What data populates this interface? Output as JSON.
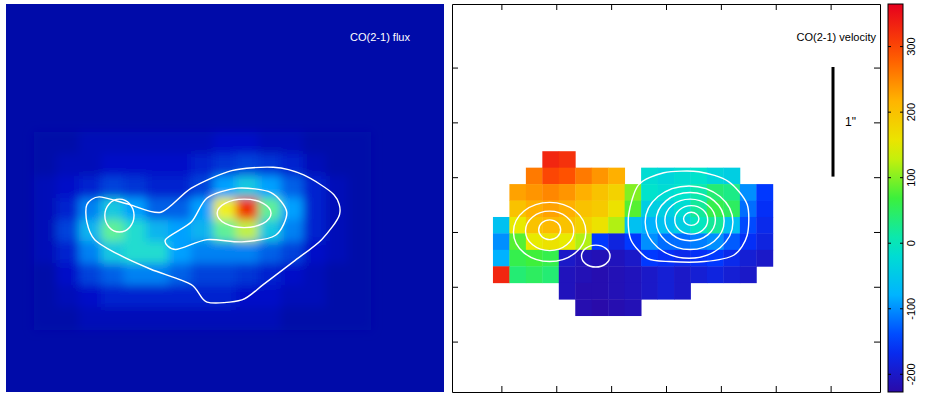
{
  "chart_data": [
    {
      "type": "heatmap",
      "title": "CO(2-1) flux",
      "xlim": [
        -1.95,
        1.95
      ],
      "ylim": [
        -1.77,
        1.77
      ],
      "color_range": [
        0,
        1
      ],
      "x": [
        -1.6,
        -1.4,
        -1.2,
        -1,
        -0.8,
        -0.6,
        -0.4,
        -0.2,
        0,
        0.2,
        0.4,
        0.6,
        0.8,
        1,
        1.2
      ],
      "y": [
        0.5,
        0.3,
        0.1,
        -0.1,
        -0.3,
        -0.5,
        -0.7,
        -0.9,
        -1.1
      ],
      "values": [
        [
          0.08,
          0.08,
          0.1,
          0.1,
          0.1,
          0.1,
          0.1,
          0.1,
          0.12,
          0.12,
          0.1,
          0.1,
          0.08,
          0.08,
          0.08
        ],
        [
          0.08,
          0.1,
          0.1,
          0.12,
          0.12,
          0.12,
          0.12,
          0.15,
          0.18,
          0.2,
          0.18,
          0.15,
          0.1,
          0.08,
          0.08
        ],
        [
          0.1,
          0.12,
          0.15,
          0.2,
          0.18,
          0.15,
          0.15,
          0.2,
          0.35,
          0.45,
          0.35,
          0.25,
          0.15,
          0.1,
          0.08
        ],
        [
          0.1,
          0.15,
          0.3,
          0.45,
          0.35,
          0.25,
          0.25,
          0.35,
          0.75,
          0.95,
          0.6,
          0.35,
          0.15,
          0.1,
          0.08
        ],
        [
          0.1,
          0.2,
          0.4,
          0.6,
          0.5,
          0.4,
          0.35,
          0.4,
          0.6,
          0.7,
          0.45,
          0.3,
          0.15,
          0.1,
          0.08
        ],
        [
          0.1,
          0.15,
          0.3,
          0.45,
          0.5,
          0.5,
          0.35,
          0.3,
          0.3,
          0.3,
          0.25,
          0.2,
          0.12,
          0.1,
          0.08
        ],
        [
          0.08,
          0.12,
          0.2,
          0.25,
          0.3,
          0.3,
          0.25,
          0.2,
          0.2,
          0.18,
          0.15,
          0.12,
          0.1,
          0.08,
          0.08
        ],
        [
          0.08,
          0.1,
          0.12,
          0.15,
          0.15,
          0.15,
          0.15,
          0.15,
          0.15,
          0.12,
          0.12,
          0.1,
          0.1,
          0.08,
          0.08
        ],
        [
          0.08,
          0.08,
          0.1,
          0.1,
          0.1,
          0.1,
          0.1,
          0.1,
          0.1,
          0.1,
          0.1,
          0.08,
          0.08,
          0.08,
          0.08
        ]
      ],
      "contours": [
        {
          "points": [
            [
              -1.23,
              -0.06
            ],
            [
              -1.12,
              0.01
            ],
            [
              -0.85,
              -0.06
            ],
            [
              -0.57,
              -0.13
            ],
            [
              -0.3,
              0.09
            ],
            [
              0.06,
              0.25
            ],
            [
              0.43,
              0.28
            ],
            [
              0.7,
              0.21
            ],
            [
              0.97,
              0.03
            ],
            [
              1.02,
              -0.15
            ],
            [
              0.86,
              -0.38
            ],
            [
              0.61,
              -0.58
            ],
            [
              0.34,
              -0.79
            ],
            [
              0.15,
              -0.93
            ],
            [
              -0.16,
              -0.95
            ],
            [
              -0.3,
              -0.79
            ],
            [
              -0.66,
              -0.65
            ],
            [
              -0.94,
              -0.52
            ],
            [
              -1.16,
              -0.38
            ],
            [
              -1.23,
              -0.22
            ]
          ]
        },
        {
          "center": [
            -0.94,
            -0.16
          ],
          "radii": [
            0.13,
            0.15
          ]
        },
        {
          "points": [
            [
              -0.53,
              -0.38
            ],
            [
              -0.3,
              -0.22
            ],
            [
              -0.16,
              0
            ],
            [
              0.11,
              0.09
            ],
            [
              0.41,
              0.05
            ],
            [
              0.55,
              -0.13
            ],
            [
              0.45,
              -0.34
            ],
            [
              0.15,
              -0.4
            ],
            [
              -0.16,
              -0.38
            ],
            [
              -0.44,
              -0.47
            ]
          ]
        },
        {
          "center": [
            0.17,
            -0.14
          ],
          "radii": [
            0.24,
            0.13
          ]
        }
      ]
    },
    {
      "type": "heatmap",
      "title": "CO(2-1) velocity",
      "xlim": [
        -1.95,
        1.95
      ],
      "ylim": [
        -1.77,
        1.77
      ],
      "xticks": [
        -1.5,
        -1,
        -0.5,
        0,
        0.5,
        1,
        1.5
      ],
      "yticks": [
        -1.31,
        -0.81,
        -0.31,
        0.19,
        0.69,
        1.19
      ],
      "tick_labels": false,
      "colorbar": {
        "range": [
          -227,
          365
        ],
        "ticks": [
          -200,
          -100,
          0,
          100,
          200,
          300
        ]
      },
      "scale_bar": {
        "length": 1,
        "label": "1\""
      },
      "x": [
        -1.5,
        -1.35,
        -1.2,
        -1.05,
        -0.9,
        -0.75,
        -0.6,
        -0.45,
        -0.3,
        -0.15,
        0,
        0.15,
        0.3,
        0.45,
        0.6,
        0.75,
        0.9
      ],
      "y": [
        0.35,
        0.2,
        0.05,
        -0.1,
        -0.25,
        -0.4,
        -0.55,
        -0.7,
        -0.85,
        -1.0
      ],
      "values": [
        [
          null,
          null,
          null,
          330,
          320,
          null,
          null,
          null,
          null,
          null,
          null,
          null,
          null,
          null,
          null,
          null,
          null
        ],
        [
          null,
          null,
          260,
          300,
          290,
          260,
          240,
          220,
          null,
          -20,
          -30,
          -20,
          -10,
          -30,
          -40,
          null,
          null
        ],
        [
          null,
          230,
          240,
          250,
          240,
          220,
          200,
          180,
          100,
          -10,
          -20,
          -10,
          10,
          40,
          30,
          -100,
          -150
        ],
        [
          null,
          200,
          220,
          230,
          220,
          200,
          190,
          160,
          80,
          -40,
          -40,
          -20,
          20,
          60,
          50,
          -120,
          -160
        ],
        [
          -60,
          150,
          200,
          210,
          200,
          180,
          160,
          120,
          -60,
          -80,
          -60,
          -40,
          0,
          20,
          -60,
          -140,
          -170
        ],
        [
          -100,
          80,
          150,
          160,
          150,
          120,
          -150,
          -180,
          -150,
          -100,
          -120,
          -120,
          -110,
          -100,
          -130,
          -160,
          -180
        ],
        [
          -80,
          60,
          70,
          60,
          -200,
          -210,
          -215,
          -210,
          -200,
          -150,
          -160,
          -170,
          -160,
          -150,
          -170,
          -190,
          -200
        ],
        [
          330,
          40,
          50,
          40,
          -210,
          -215,
          -220,
          -215,
          -210,
          -200,
          -190,
          -200,
          -190,
          -180,
          -190,
          -200,
          null
        ],
        [
          null,
          null,
          null,
          null,
          -210,
          -220,
          -220,
          -215,
          -210,
          -200,
          -190,
          -200,
          null,
          null,
          null,
          null,
          null
        ],
        [
          null,
          null,
          null,
          null,
          null,
          -220,
          -225,
          -220,
          -215,
          null,
          null,
          null,
          null,
          null,
          null,
          null,
          null
        ]
      ],
      "contours": [
        {
          "points": [
            [
              -0.25,
              0.12
            ],
            [
              -0.02,
              0.23
            ],
            [
              0.3,
              0.24
            ],
            [
              0.57,
              0.15
            ],
            [
              0.74,
              -0.06
            ],
            [
              0.74,
              -0.34
            ],
            [
              0.62,
              -0.52
            ],
            [
              0.35,
              -0.58
            ],
            [
              0.03,
              -0.58
            ],
            [
              -0.17,
              -0.55
            ],
            [
              -0.32,
              -0.38
            ],
            [
              -0.34,
              -0.15
            ]
          ]
        },
        {
          "center": [
            0.21,
            -0.22
          ],
          "radii": [
            0.4,
            0.33
          ]
        },
        {
          "center": [
            0.22,
            -0.21
          ],
          "radii": [
            0.31,
            0.26
          ]
        },
        {
          "center": [
            0.22,
            -0.2
          ],
          "radii": [
            0.23,
            0.19
          ]
        },
        {
          "center": [
            0.23,
            -0.2
          ],
          "radii": [
            0.15,
            0.13
          ]
        },
        {
          "center": [
            0.23,
            -0.19
          ],
          "radii": [
            0.07,
            0.06
          ]
        },
        {
          "center": [
            -1.06,
            -0.31
          ],
          "radii": [
            0.33,
            0.27
          ]
        },
        {
          "center": [
            -1.06,
            -0.3
          ],
          "radii": [
            0.22,
            0.18
          ]
        },
        {
          "center": [
            -1.06,
            -0.29
          ],
          "radii": [
            0.1,
            0.09
          ]
        },
        {
          "center": [
            -0.64,
            -0.53
          ],
          "radii": [
            0.13,
            0.1
          ]
        }
      ]
    }
  ]
}
